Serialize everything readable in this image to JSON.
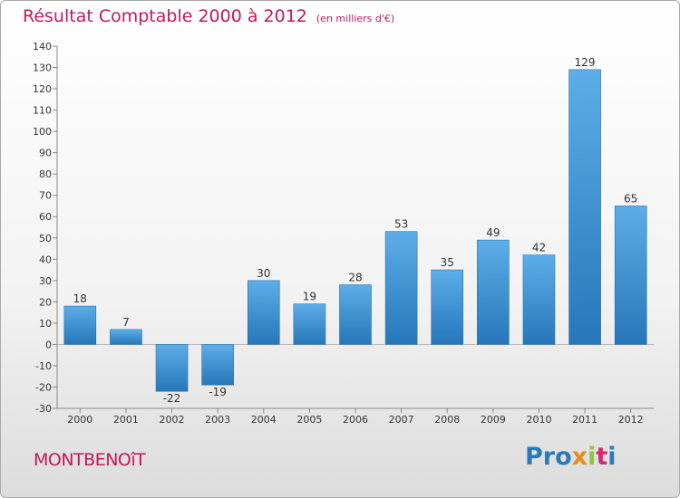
{
  "title": "Résultat Comptable 2000 à 2012",
  "subtitle": "(en milliers d'€)",
  "commune": "MONTBENOîT",
  "logo": {
    "p1": "Pro",
    "p2": "x",
    "p3": "i",
    "p4": "t",
    "p5": "i"
  },
  "colors": {
    "bar_light": "#5dade8",
    "bar_dark": "#2677ba",
    "title": "#c2185b"
  },
  "chart_data": {
    "type": "bar",
    "categories": [
      "2000",
      "2001",
      "2002",
      "2003",
      "2004",
      "2005",
      "2006",
      "2007",
      "2008",
      "2009",
      "2010",
      "2011",
      "2012"
    ],
    "values": [
      18,
      7,
      -22,
      -19,
      30,
      19,
      28,
      53,
      35,
      49,
      42,
      129,
      65
    ],
    "data_labels": [
      "18",
      "7",
      "-22",
      "-19",
      "30",
      "19",
      "28",
      "53",
      "35",
      "49",
      "42",
      "129",
      "65"
    ],
    "ylim": [
      -30,
      140
    ],
    "yticks": [
      140,
      130,
      120,
      110,
      100,
      90,
      80,
      70,
      60,
      50,
      40,
      30,
      20,
      10,
      0,
      -10,
      -20,
      -30
    ],
    "ytick_labels": [
      "140",
      "130",
      "120",
      "110",
      "100",
      "90",
      "80",
      "70",
      "60",
      "50",
      "40",
      "30",
      "20",
      "10",
      "0",
      "-10",
      "-20",
      "-30"
    ],
    "grid": false,
    "legend": "none"
  }
}
